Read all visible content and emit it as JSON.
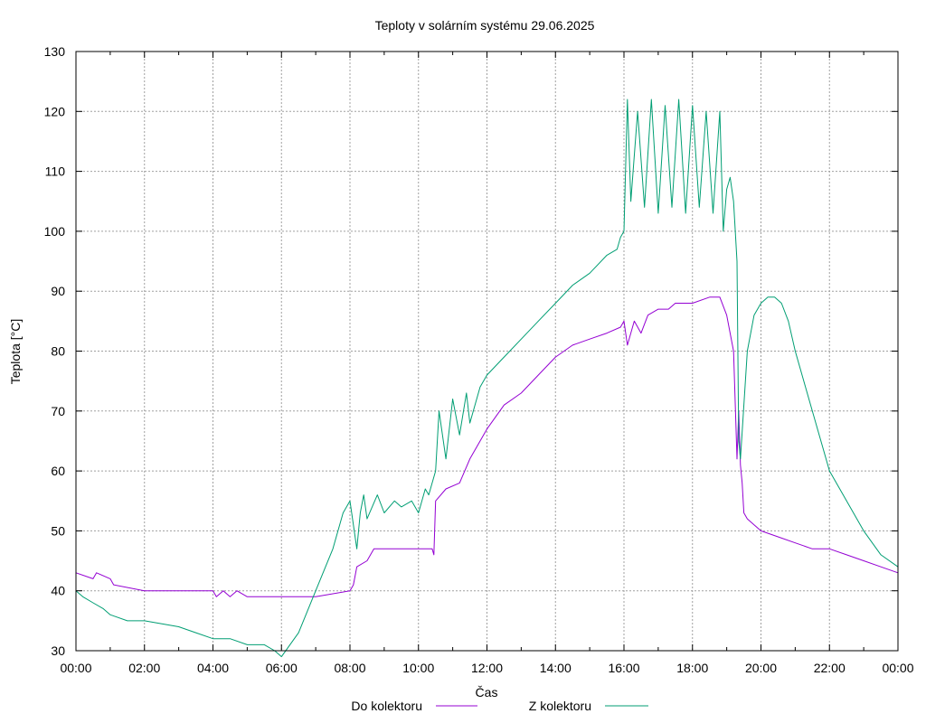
{
  "chart_data": {
    "type": "line",
    "title": "Teploty v solárním systému 29.06.2025",
    "xlabel": "Čas",
    "ylabel": "Teplota [°C]",
    "xlim": [
      0,
      24
    ],
    "ylim": [
      30,
      130
    ],
    "grid": true,
    "legend_position": "bottom-center",
    "x_ticks": [
      "00:00",
      "02:00",
      "04:00",
      "06:00",
      "08:00",
      "10:00",
      "12:00",
      "14:00",
      "16:00",
      "18:00",
      "20:00",
      "22:00",
      "00:00"
    ],
    "y_ticks": [
      "30",
      "40",
      "50",
      "60",
      "70",
      "80",
      "90",
      "100",
      "110",
      "120",
      "130"
    ],
    "series": [
      {
        "name": "Do kolektoru",
        "color": "#9400d3",
        "x": [
          0,
          0.5,
          0.6,
          1.0,
          1.1,
          2.0,
          4.0,
          4.1,
          4.3,
          4.5,
          4.7,
          5.0,
          6.0,
          7.0,
          8.0,
          8.1,
          8.2,
          8.5,
          8.7,
          9.5,
          10.0,
          10.4,
          10.45,
          10.5,
          10.8,
          11.2,
          11.5,
          12.0,
          12.5,
          13.0,
          13.5,
          14.0,
          14.5,
          15.0,
          15.5,
          15.9,
          16.0,
          16.1,
          16.3,
          16.5,
          16.7,
          17.0,
          17.3,
          17.5,
          17.8,
          18.0,
          18.5,
          18.8,
          19.0,
          19.2,
          19.3,
          19.35,
          19.4,
          19.45,
          19.5,
          19.6,
          19.8,
          20.0,
          20.5,
          21.0,
          21.5,
          22.0,
          22.5,
          23.0,
          23.5,
          24.0
        ],
        "values": [
          43,
          42,
          43,
          42,
          41,
          40,
          40,
          39,
          40,
          39,
          40,
          39,
          39,
          39,
          40,
          41,
          44,
          45,
          47,
          47,
          47,
          47,
          46,
          55,
          57,
          58,
          62,
          67,
          71,
          73,
          76,
          79,
          81,
          82,
          83,
          84,
          85,
          81,
          85,
          83,
          86,
          87,
          87,
          88,
          88,
          88,
          89,
          89,
          86,
          80,
          62,
          70,
          61,
          58,
          53,
          52,
          51,
          50,
          49,
          48,
          47,
          47,
          46,
          45,
          44,
          43
        ]
      },
      {
        "name": "Z kolektoru",
        "color": "#009e73",
        "x": [
          0,
          0.2,
          0.5,
          0.8,
          1.0,
          1.5,
          2.0,
          3.0,
          3.5,
          4.0,
          4.5,
          5.0,
          5.5,
          5.8,
          6.0,
          6.5,
          7.0,
          7.5,
          7.8,
          8.0,
          8.2,
          8.3,
          8.4,
          8.5,
          8.8,
          9.0,
          9.3,
          9.5,
          9.8,
          10.0,
          10.2,
          10.3,
          10.4,
          10.5,
          10.6,
          10.8,
          11.0,
          11.2,
          11.4,
          11.5,
          11.8,
          12.0,
          12.5,
          13.0,
          13.5,
          14.0,
          14.5,
          15.0,
          15.5,
          15.8,
          15.9,
          16.0,
          16.1,
          16.2,
          16.4,
          16.6,
          16.8,
          17.0,
          17.2,
          17.4,
          17.6,
          17.8,
          18.0,
          18.2,
          18.4,
          18.6,
          18.8,
          18.9,
          19.0,
          19.1,
          19.2,
          19.3,
          19.35,
          19.4,
          19.6,
          19.8,
          20.0,
          20.2,
          20.4,
          20.6,
          20.8,
          21.0,
          21.5,
          22.0,
          22.5,
          23.0,
          23.5,
          24.0
        ],
        "values": [
          40,
          39,
          38,
          37,
          36,
          35,
          35,
          34,
          33,
          32,
          32,
          31,
          31,
          30,
          29,
          33,
          40,
          47,
          53,
          55,
          47,
          53,
          56,
          52,
          56,
          53,
          55,
          54,
          55,
          53,
          57,
          56,
          58,
          60,
          70,
          62,
          72,
          66,
          73,
          68,
          74,
          76,
          79,
          82,
          85,
          88,
          91,
          93,
          96,
          97,
          99,
          100,
          122,
          105,
          120,
          104,
          122,
          103,
          121,
          104,
          122,
          103,
          121,
          104,
          120,
          103,
          120,
          100,
          107,
          109,
          105,
          95,
          65,
          62,
          80,
          86,
          88,
          89,
          89,
          88,
          85,
          80,
          70,
          60,
          55,
          50,
          46,
          44
        ]
      }
    ]
  }
}
